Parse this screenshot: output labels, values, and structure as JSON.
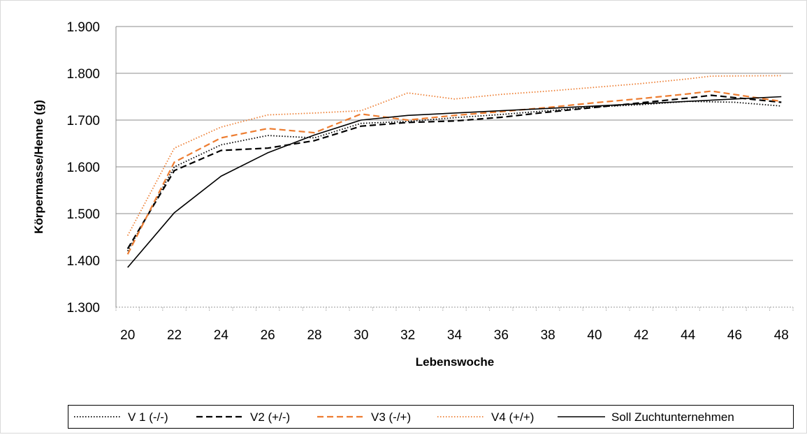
{
  "chart_data": {
    "type": "line",
    "title": "",
    "xlabel": "Lebenswoche",
    "ylabel": "Körpermasse/Henne (g)",
    "x_ticks": [
      "20",
      "22",
      "24",
      "26",
      "28",
      "30",
      "32",
      "34",
      "36",
      "38",
      "40",
      "42",
      "44",
      "46",
      "48"
    ],
    "xlim": [
      20,
      48
    ],
    "y_ticks": [
      "1.300",
      "1.400",
      "1.500",
      "1.600",
      "1.700",
      "1.800",
      "1.900"
    ],
    "ylim": [
      1300,
      1900
    ],
    "grid": true,
    "legend_position": "bottom",
    "series": [
      {
        "name": "V 1 (-/-)",
        "color": "#000000",
        "style": "dotted",
        "x": [
          20,
          22,
          24,
          26,
          28,
          30,
          32,
          34,
          36,
          38,
          40,
          42,
          44,
          46,
          48
        ],
        "values": [
          1420,
          1600,
          1647,
          1667,
          1662,
          1693,
          1697,
          1705,
          1712,
          1720,
          1728,
          1733,
          1740,
          1738,
          1730
        ]
      },
      {
        "name": "V2 (+/-)",
        "color": "#000000",
        "style": "dashed",
        "x": [
          20,
          22,
          24,
          26,
          28,
          30,
          32,
          34,
          36,
          38,
          40,
          42,
          44,
          45,
          48
        ],
        "values": [
          1425,
          1592,
          1635,
          1640,
          1656,
          1687,
          1695,
          1698,
          1706,
          1717,
          1727,
          1737,
          1747,
          1753,
          1738
        ]
      },
      {
        "name": "V3 (-/+)",
        "color": "#ED7D31",
        "style": "dashed",
        "x": [
          20,
          22,
          24,
          26,
          28,
          30,
          32,
          34,
          36,
          38,
          40,
          42,
          44,
          45,
          48
        ],
        "values": [
          1413,
          1610,
          1662,
          1682,
          1673,
          1713,
          1700,
          1710,
          1718,
          1727,
          1737,
          1746,
          1756,
          1762,
          1740
        ]
      },
      {
        "name": "V4 (+/+)",
        "color": "#ED7D31",
        "style": "dotted",
        "x": [
          20,
          22,
          24,
          26,
          28,
          30,
          32,
          34,
          36,
          38,
          40,
          42,
          44,
          45,
          48
        ],
        "values": [
          1453,
          1640,
          1685,
          1711,
          1715,
          1720,
          1758,
          1745,
          1755,
          1762,
          1770,
          1778,
          1788,
          1794,
          1795
        ]
      },
      {
        "name": "Soll Zuchtunternehmen",
        "color": "#000000",
        "style": "solid",
        "x": [
          20,
          22,
          24,
          26,
          28,
          30,
          32,
          34,
          36,
          38,
          40,
          42,
          44,
          46,
          48
        ],
        "values": [
          1385,
          1502,
          1580,
          1630,
          1668,
          1700,
          1710,
          1715,
          1720,
          1725,
          1730,
          1735,
          1740,
          1745,
          1750
        ]
      }
    ]
  }
}
